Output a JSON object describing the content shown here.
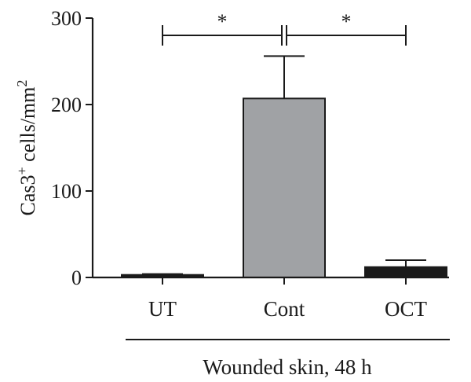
{
  "chart_data": {
    "type": "bar",
    "categories": [
      "UT",
      "Cont",
      "OCT"
    ],
    "values": [
      3,
      207,
      12
    ],
    "error_upper": [
      1,
      49,
      8
    ],
    "bar_colors": [
      "#1a1a1a",
      "#a0a2a5",
      "#1a1a1a"
    ],
    "ylabel": {
      "base": "Cas3",
      "sup1": "+",
      "mid": " cells/mm",
      "sup2": "2"
    },
    "ylim": [
      0,
      300
    ],
    "yticks": [
      0,
      100,
      200,
      300
    ],
    "group_label": "Wounded skin, 48 h",
    "significance": [
      {
        "from": "UT",
        "to": "Cont",
        "label": "*"
      },
      {
        "from": "Cont",
        "to": "OCT",
        "label": "*"
      }
    ],
    "grid": false
  }
}
